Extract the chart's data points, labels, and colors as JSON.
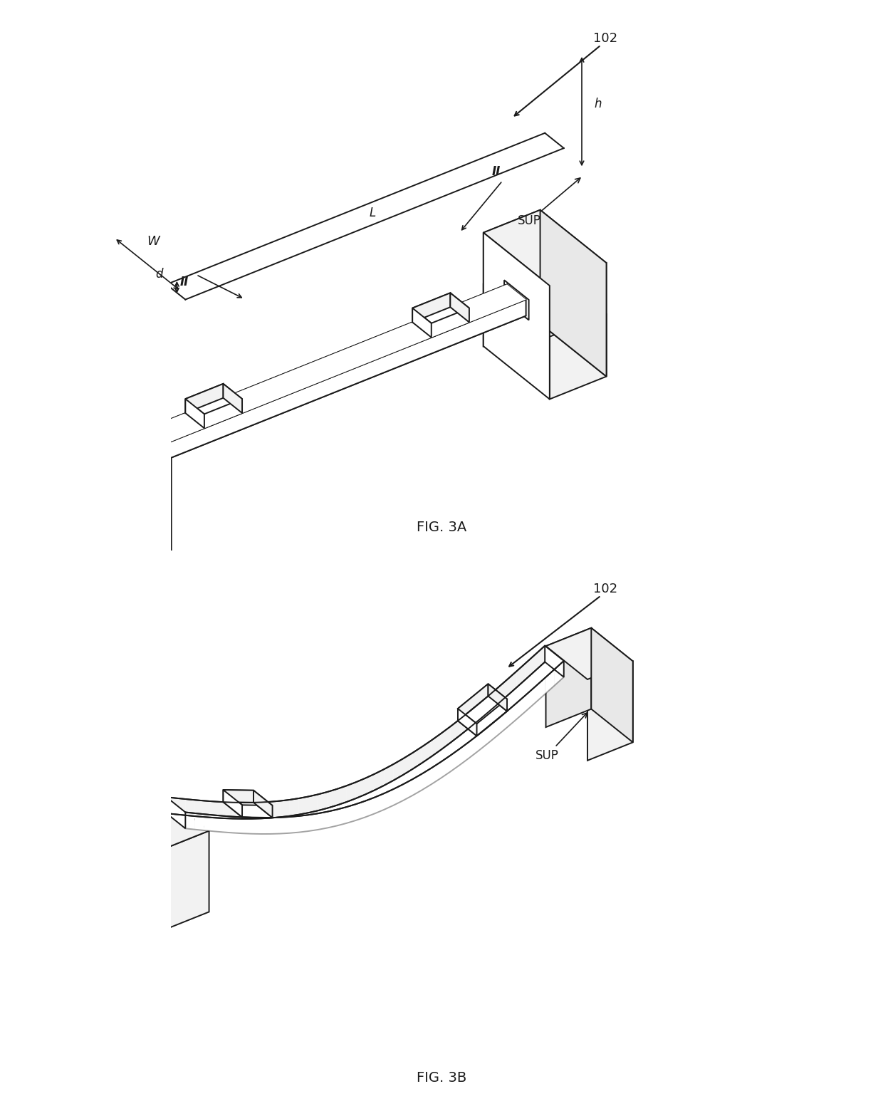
{
  "bg_color": "#ffffff",
  "line_color": "#1a1a1a",
  "line_width": 1.4,
  "fig3a_label": "FIG. 3A",
  "fig3b_label": "FIG. 3B",
  "ref_label": "102"
}
